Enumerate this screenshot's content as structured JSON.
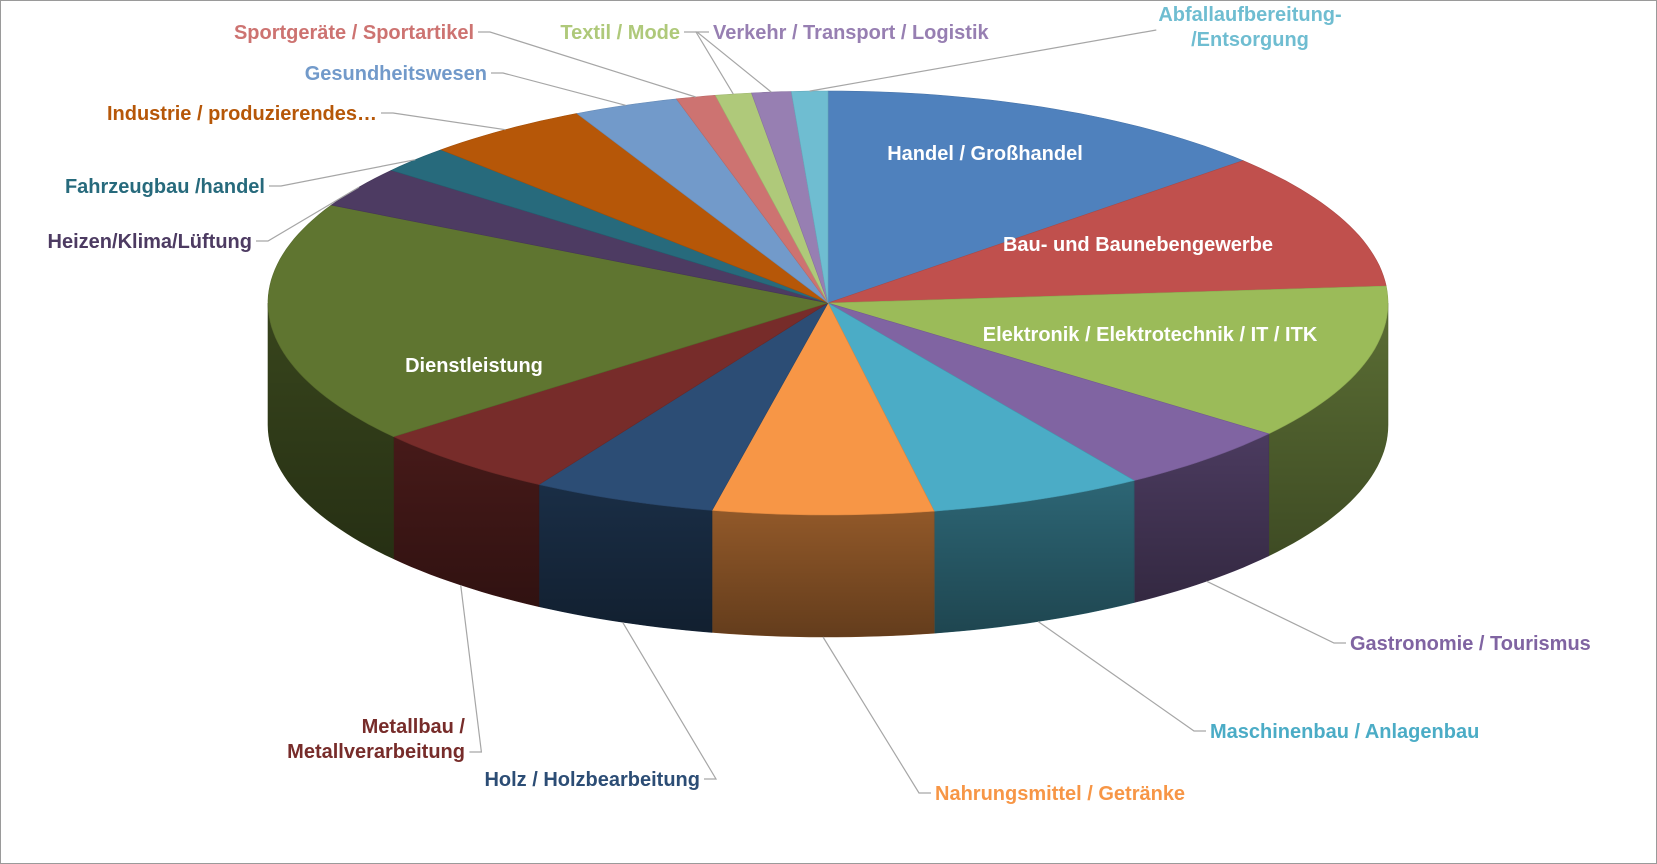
{
  "chart_data": {
    "type": "pie",
    "title": "",
    "style": "3d-exploded-none",
    "start": "12 o'clock, clockwise",
    "slices": [
      {
        "label": "Handel / Großhandel",
        "value": 14.0,
        "color": "#4F81BD",
        "label_inside": true
      },
      {
        "label": "Bau- und Baunebengewerbe",
        "value": 11.0,
        "color": "#C0504D",
        "label_inside": true
      },
      {
        "label": "Elektronik / Elektrotechnik / IT / ITK",
        "value": 12.5,
        "color": "#9BBB59",
        "label_inside": true
      },
      {
        "label": "Gastronomie / Tourismus",
        "value": 5.5,
        "color": "#8064A2",
        "label_inside": false
      },
      {
        "label": "Maschinenbau / Anlagenbau",
        "value": 6.5,
        "color": "#4BACC6",
        "label_inside": false
      },
      {
        "label": "Nahrungsmittel / Getränke",
        "value": 6.7,
        "color": "#F79646",
        "label_inside": false
      },
      {
        "label": "Holz / Holzbearbeitung",
        "value": 5.6,
        "color": "#2C4D75",
        "label_inside": false
      },
      {
        "label": "Metallbau / Metallverarbeitung",
        "value": 5.8,
        "color": "#772C2A",
        "label_inside": false
      },
      {
        "label": "Dienstleistung",
        "value": 19.5,
        "color": "#5F7530",
        "label_inside": true
      },
      {
        "label": "Heizen/Klima/Lüftung",
        "value": 3.3,
        "color": "#4D3B62",
        "label_inside": false
      },
      {
        "label": "Fahrzeugbau /handel",
        "value": 2.2,
        "color": "#276A7C",
        "label_inside": false
      },
      {
        "label": "Industrie / produzierendes…",
        "value": 5.0,
        "color": "#B65708",
        "label_inside": false
      },
      {
        "label": "Gesundheitswesen",
        "value": 3.2,
        "color": "#729ACA",
        "label_inside": false
      },
      {
        "label": "Sportgeräte / Sportartikel",
        "value": 1.2,
        "color": "#CD7371",
        "label_inside": false
      },
      {
        "label": "Textil / Mode",
        "value": 1.1,
        "color": "#AFC97A",
        "label_inside": false
      },
      {
        "label": "Verkehr / Transport / Logistik",
        "value": 1.2,
        "color": "#977FB2",
        "label_inside": false
      },
      {
        "label": "Abfallaufbereitung-/Entsorgung",
        "value": 1.1,
        "color": "#6FBDD1",
        "label_inside": false
      }
    ]
  }
}
